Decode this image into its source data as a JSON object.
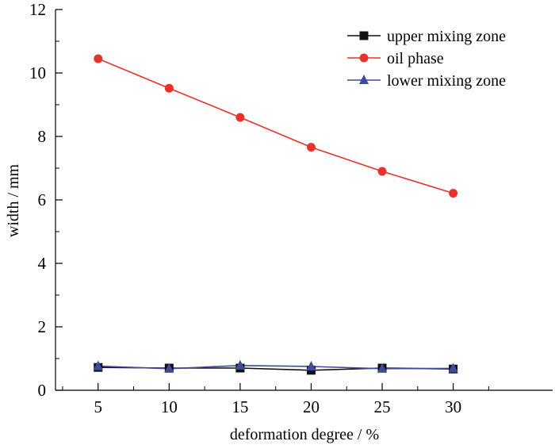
{
  "chart_data": {
    "type": "line",
    "title": "",
    "xlabel": "deformation degree / %",
    "ylabel": "width / mm",
    "xlim": [
      2,
      37
    ],
    "ylim": [
      0,
      12
    ],
    "x": [
      5,
      10,
      15,
      20,
      25,
      30
    ],
    "xticks": [
      5,
      10,
      15,
      20,
      25,
      30
    ],
    "yticks": [
      0,
      2,
      4,
      6,
      8,
      10,
      12
    ],
    "grid": false,
    "legend_position": "top-right",
    "series": [
      {
        "name": "upper mixing zone",
        "marker": "square",
        "color": "#111111",
        "values": [
          0.72,
          0.7,
          0.7,
          0.63,
          0.7,
          0.67
        ]
      },
      {
        "name": "oil phase",
        "marker": "circle",
        "color": "#e8322b",
        "values": [
          10.45,
          9.52,
          8.6,
          7.66,
          6.9,
          6.21
        ]
      },
      {
        "name": "lower mixing zone",
        "marker": "triangle",
        "color": "#3f4a9c",
        "values": [
          0.76,
          0.68,
          0.78,
          0.75,
          0.68,
          0.69
        ]
      }
    ]
  }
}
